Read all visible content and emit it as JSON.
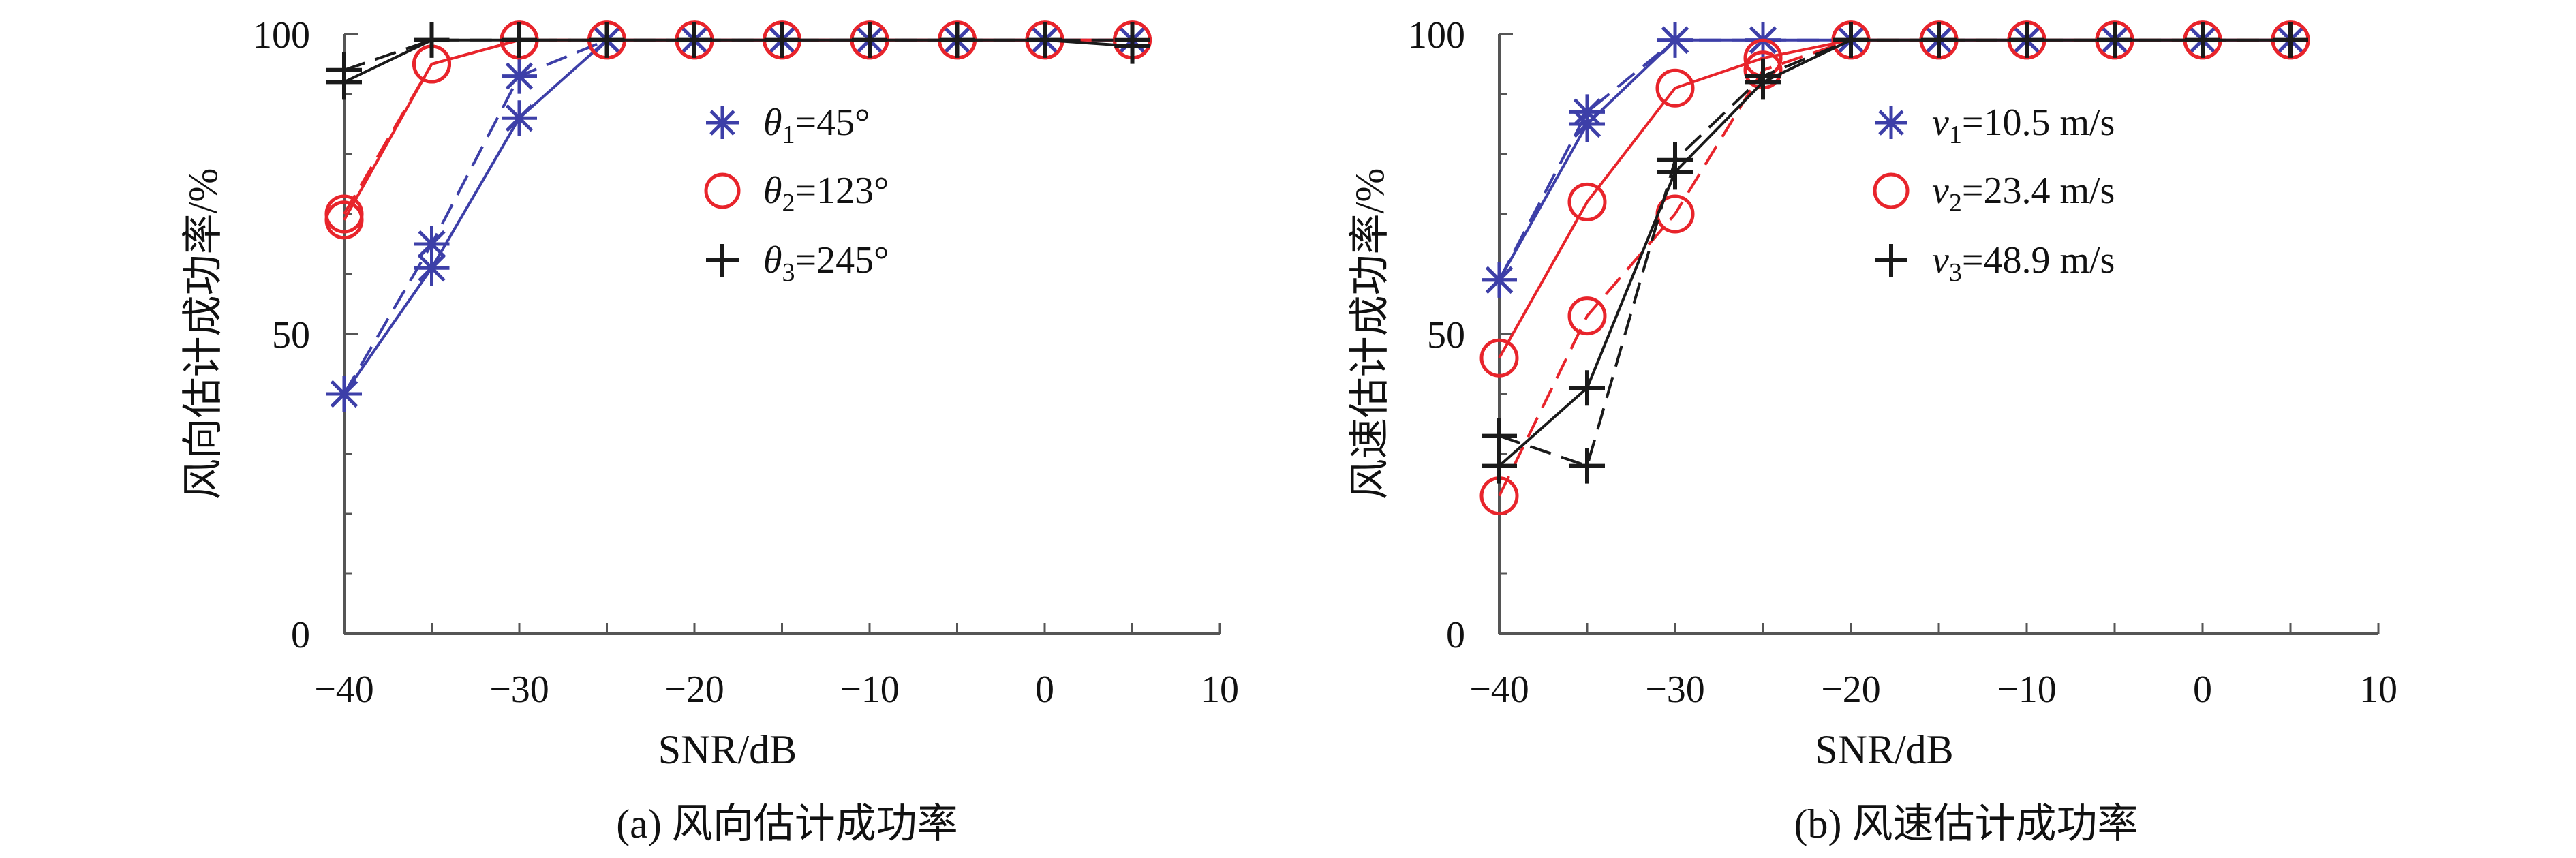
{
  "colors": {
    "blue": "#3d3fa8",
    "red": "#e8242b",
    "black": "#1a1a1a",
    "axis": "#555555"
  },
  "chart_data": [
    {
      "type": "line",
      "panel": "a",
      "caption": "(a) 风向估计成功率",
      "xlabel": "SNR/dB",
      "ylabel": "风向估计成功率/%",
      "xlim": [
        -40,
        10
      ],
      "ylim": [
        0,
        100
      ],
      "xticks": [
        "−40",
        "−30",
        "−20",
        "−10",
        "0",
        "10"
      ],
      "yticks": [
        "0",
        "50",
        "100"
      ],
      "grid": false,
      "legend_position": "center-right",
      "legend": [
        {
          "var": "θ",
          "sub": "1",
          "val": "=45°",
          "marker": "asterisk",
          "color": "#3d3fa8"
        },
        {
          "var": "θ",
          "sub": "2",
          "val": "=123°",
          "marker": "circle",
          "color": "#e8242b"
        },
        {
          "var": "θ",
          "sub": "3",
          "val": "=245°",
          "marker": "plus",
          "color": "#1a1a1a"
        }
      ],
      "series": [
        {
          "marker": "asterisk",
          "color": "#3d3fa8",
          "dash": false,
          "x": [
            -40,
            -35,
            -30,
            -25,
            -20,
            -15,
            -10,
            -5,
            0,
            5
          ],
          "values": [
            40,
            61,
            86,
            99,
            99,
            99,
            99,
            99,
            99,
            99
          ]
        },
        {
          "marker": "asterisk",
          "color": "#3d3fa8",
          "dash": true,
          "x": [
            -40,
            -35,
            -30,
            -25,
            -20,
            -15,
            -10,
            -5,
            0,
            5
          ],
          "values": [
            40,
            65,
            93,
            99,
            99,
            99,
            99,
            99,
            99,
            99
          ]
        },
        {
          "marker": "circle",
          "color": "#e8242b",
          "dash": false,
          "x": [
            -40,
            -35,
            -30,
            -25,
            -20,
            -15,
            -10,
            -5,
            0,
            5
          ],
          "values": [
            69,
            95,
            99,
            99,
            99,
            99,
            99,
            99,
            99,
            99
          ]
        },
        {
          "marker": "circle",
          "color": "#e8242b",
          "dash": true,
          "x": [
            -40,
            -35,
            -30,
            -25,
            -20,
            -15,
            -10,
            -5,
            0,
            5
          ],
          "values": [
            70,
            95,
            99,
            99,
            99,
            99,
            99,
            99,
            99,
            99
          ]
        },
        {
          "marker": "plus",
          "color": "#1a1a1a",
          "dash": false,
          "x": [
            -40,
            -35,
            -30,
            -25,
            -20,
            -15,
            -10,
            -5,
            0,
            5
          ],
          "values": [
            92,
            99,
            99,
            99,
            99,
            99,
            99,
            99,
            99,
            98
          ]
        },
        {
          "marker": "plus",
          "color": "#1a1a1a",
          "dash": true,
          "x": [
            -40,
            -35,
            -30,
            -25,
            -20,
            -15,
            -10,
            -5,
            0,
            5
          ],
          "values": [
            94,
            99,
            99,
            99,
            99,
            99,
            99,
            99,
            99,
            99
          ]
        }
      ]
    },
    {
      "type": "line",
      "panel": "b",
      "caption": "(b) 风速估计成功率",
      "xlabel": "SNR/dB",
      "ylabel": "风速估计成功率/%",
      "xlim": [
        -40,
        10
      ],
      "ylim": [
        0,
        100
      ],
      "xticks": [
        "−40",
        "−30",
        "−20",
        "−10",
        "0",
        "10"
      ],
      "yticks": [
        "0",
        "50",
        "100"
      ],
      "grid": false,
      "legend_position": "center-right",
      "legend": [
        {
          "var": "v",
          "sub": "1",
          "val": "=10.5 m/s",
          "marker": "asterisk",
          "color": "#3d3fa8"
        },
        {
          "var": "v",
          "sub": "2",
          "val": "=23.4 m/s",
          "marker": "circle",
          "color": "#e8242b"
        },
        {
          "var": "v",
          "sub": "3",
          "val": "=48.9 m/s",
          "marker": "plus",
          "color": "#1a1a1a"
        }
      ],
      "series": [
        {
          "marker": "asterisk",
          "color": "#3d3fa8",
          "dash": false,
          "x": [
            -40,
            -35,
            -30,
            -25,
            -20,
            -15,
            -10,
            -5,
            0,
            5
          ],
          "values": [
            59,
            85,
            99,
            99,
            99,
            99,
            99,
            99,
            99,
            99
          ]
        },
        {
          "marker": "asterisk",
          "color": "#3d3fa8",
          "dash": true,
          "x": [
            -40,
            -35,
            -30,
            -25,
            -20,
            -15,
            -10,
            -5,
            0,
            5
          ],
          "values": [
            59,
            87,
            99,
            99,
            99,
            99,
            99,
            99,
            99,
            99
          ]
        },
        {
          "marker": "circle",
          "color": "#e8242b",
          "dash": false,
          "x": [
            -40,
            -35,
            -30,
            -25,
            -20,
            -15,
            -10,
            -5,
            0,
            5
          ],
          "values": [
            46,
            72,
            91,
            96,
            99,
            99,
            99,
            99,
            99,
            99
          ]
        },
        {
          "marker": "circle",
          "color": "#e8242b",
          "dash": true,
          "x": [
            -40,
            -35,
            -30,
            -25,
            -20,
            -15,
            -10,
            -5,
            0,
            5
          ],
          "values": [
            23,
            53,
            70,
            94,
            99,
            99,
            99,
            99,
            99,
            99
          ]
        },
        {
          "marker": "plus",
          "color": "#1a1a1a",
          "dash": false,
          "x": [
            -40,
            -35,
            -30,
            -25,
            -20,
            -15,
            -10,
            -5,
            0,
            5
          ],
          "values": [
            28,
            41,
            77,
            92,
            99,
            99,
            99,
            99,
            99,
            99
          ]
        },
        {
          "marker": "plus",
          "color": "#1a1a1a",
          "dash": true,
          "x": [
            -40,
            -35,
            -30,
            -25,
            -20,
            -15,
            -10,
            -5,
            0,
            5
          ],
          "values": [
            33,
            28,
            79,
            93,
            99,
            99,
            99,
            99,
            99,
            99
          ]
        }
      ]
    }
  ]
}
